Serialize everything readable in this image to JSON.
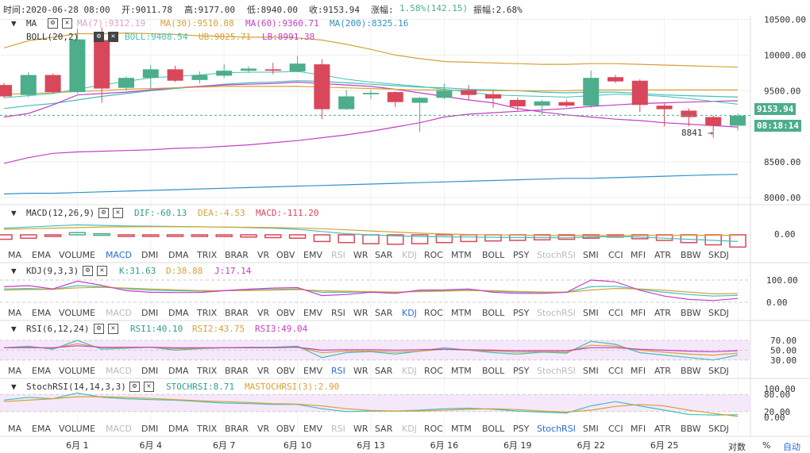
{
  "header": {
    "time": "时间:2020-06-28 08:00",
    "open": "开:9011.78",
    "high": "高:9177.00",
    "low": "低:8940.00",
    "close": "收:9153.94",
    "change_label": "涨幅:",
    "change_value": "1.58%(142.15)",
    "amplitude": "振幅:2.68%"
  },
  "ma_legend": {
    "name": "MA",
    "ma7": "MA(7):9312.19",
    "ma30": "MA(30):9510.08",
    "ma60": "MA(60):9360.71",
    "ma200": "MA(200):8325.16",
    "boll": "BOLL(20,2)",
    "boll_mid": "BOLL:9408.54",
    "boll_ub": "UB:9825.71",
    "boll_lb": "LB:8991.38"
  },
  "macd_legend": {
    "name": "MACD(12,26,9)",
    "dif": "DIF:-60.13",
    "dea": "DEA:-4.53",
    "macd": "MACD:-111.20"
  },
  "kdj_legend": {
    "name": "KDJ(9,3,3)",
    "k": "K:31.63",
    "d": "D:38.88",
    "j": "J:17.14"
  },
  "rsi_legend": {
    "name": "RSI(6,12,24)",
    "r1": "RSI1:40.10",
    "r2": "RSI2:43.75",
    "r3": "RSI3:49.04"
  },
  "stoch_legend": {
    "name": "StochRSI(14,14,3,3)",
    "s": "STOCHRSI:8.71",
    "m": "MASTOCHRSI(3):2.90"
  },
  "indicator_tabs": [
    "MA",
    "EMA",
    "VOLUME",
    "MACD",
    "DMI",
    "DMA",
    "TRIX",
    "BRAR",
    "VR",
    "OBV",
    "EMV",
    "RSI",
    "WR",
    "SAR",
    "KDJ",
    "ROC",
    "MTM",
    "BOLL",
    "PSY",
    "StochRSI",
    "SMI",
    "CCI",
    "MFI",
    "ATR",
    "BBW",
    "SKDJ"
  ],
  "current_price": "9153.94",
  "countdown": "08:18:14",
  "low_marker": "8841 →",
  "high_marker": "10500.00",
  "bottom_controls": {
    "log": "对数",
    "percent": "%",
    "auto": "自动"
  },
  "colors": {
    "up": "#4cae8a",
    "down": "#d9475b",
    "ma7": "#e39ec4",
    "ma30": "#d6a236",
    "ma60": "#c33fc3",
    "ma200": "#2f92c4",
    "boll": "#42c0b8",
    "grid": "#eeeeee"
  },
  "chart_data": {
    "type": "candlestick",
    "main_ylim": [
      7900,
      10550
    ],
    "main_yticks": [
      "8000.00",
      "8500.00",
      "9000.00",
      "9500.00",
      "10000.00",
      "10500.00"
    ],
    "xticks": [
      "6月 1",
      "6月 4",
      "6月 7",
      "6月 10",
      "6月 13",
      "6月 16",
      "6月 19",
      "6月 22",
      "6月 25"
    ],
    "candles": [
      {
        "o": 9580,
        "c": 9420,
        "h": 9610,
        "l": 9400
      },
      {
        "o": 9440,
        "c": 9720,
        "h": 9760,
        "l": 9410
      },
      {
        "o": 9720,
        "c": 9480,
        "h": 9740,
        "l": 9460
      },
      {
        "o": 9480,
        "c": 10220,
        "h": 10370,
        "l": 9460
      },
      {
        "o": 10210,
        "c": 9530,
        "h": 10390,
        "l": 9330
      },
      {
        "o": 9540,
        "c": 9680,
        "h": 9700,
        "l": 9500
      },
      {
        "o": 9680,
        "c": 9800,
        "h": 9860,
        "l": 9500
      },
      {
        "o": 9800,
        "c": 9640,
        "h": 9850,
        "l": 9620
      },
      {
        "o": 9650,
        "c": 9720,
        "h": 9770,
        "l": 9600
      },
      {
        "o": 9710,
        "c": 9780,
        "h": 9870,
        "l": 9680
      },
      {
        "o": 9780,
        "c": 9810,
        "h": 9840,
        "l": 9750
      },
      {
        "o": 9800,
        "c": 9780,
        "h": 9890,
        "l": 9730
      },
      {
        "o": 9770,
        "c": 9880,
        "h": 9990,
        "l": 9760
      },
      {
        "o": 9870,
        "c": 9240,
        "h": 9940,
        "l": 9100
      },
      {
        "o": 9240,
        "c": 9420,
        "h": 9510,
        "l": 9230
      },
      {
        "o": 9450,
        "c": 9470,
        "h": 9510,
        "l": 9380
      },
      {
        "o": 9480,
        "c": 9340,
        "h": 9490,
        "l": 9270
      },
      {
        "o": 9330,
        "c": 9400,
        "h": 9410,
        "l": 8920
      },
      {
        "o": 9400,
        "c": 9500,
        "h": 9600,
        "l": 9380
      },
      {
        "o": 9510,
        "c": 9440,
        "h": 9580,
        "l": 9370
      },
      {
        "o": 9450,
        "c": 9390,
        "h": 9500,
        "l": 9260
      },
      {
        "o": 9370,
        "c": 9280,
        "h": 9400,
        "l": 9220
      },
      {
        "o": 9290,
        "c": 9350,
        "h": 9370,
        "l": 9150
      },
      {
        "o": 9340,
        "c": 9290,
        "h": 9370,
        "l": 9270
      },
      {
        "o": 9290,
        "c": 9680,
        "h": 9780,
        "l": 9260
      },
      {
        "o": 9690,
        "c": 9630,
        "h": 9720,
        "l": 9610
      },
      {
        "o": 9640,
        "c": 9300,
        "h": 9660,
        "l": 9200
      },
      {
        "o": 9290,
        "c": 9240,
        "h": 9320,
        "l": 9000
      },
      {
        "o": 9220,
        "c": 9130,
        "h": 9250,
        "l": 9000
      },
      {
        "o": 9130,
        "c": 9010,
        "h": 9150,
        "l": 8840
      },
      {
        "o": 9010,
        "c": 9150,
        "h": 9180,
        "l": 8940
      }
    ],
    "ma7": [
      9400,
      9430,
      9460,
      9520,
      9580,
      9630,
      9680,
      9700,
      9720,
      9750,
      9760,
      9760,
      9770,
      9720,
      9660,
      9620,
      9590,
      9560,
      9520,
      9480,
      9440,
      9430,
      9420,
      9410,
      9430,
      9450,
      9440,
      9420,
      9390,
      9350,
      9310
    ],
    "ma30": [
      9450,
      9460,
      9470,
      9490,
      9500,
      9520,
      9530,
      9540,
      9550,
      9560,
      9560,
      9560,
      9560,
      9550,
      9540,
      9530,
      9520,
      9510,
      9510,
      9500,
      9500,
      9500,
      9500,
      9500,
      9510,
      9510,
      9510,
      9510,
      9510,
      9510,
      9510
    ],
    "ma60": [
      8480,
      8560,
      8620,
      8640,
      8650,
      8660,
      8670,
      8690,
      8700,
      8720,
      8740,
      8770,
      8800,
      8840,
      8880,
      8930,
      8990,
      9050,
      9130,
      9170,
      9190,
      9210,
      9230,
      9250,
      9280,
      9300,
      9320,
      9330,
      9340,
      9350,
      9360
    ],
    "ma200": [
      8050,
      8060,
      8060,
      8070,
      8080,
      8090,
      8100,
      8110,
      8120,
      8130,
      8140,
      8150,
      8160,
      8170,
      8180,
      8190,
      8200,
      8210,
      8220,
      8230,
      8240,
      8250,
      8260,
      8270,
      8270,
      8280,
      8290,
      8300,
      8310,
      8320,
      8325
    ],
    "boll_mid": [
      9250,
      9290,
      9320,
      9370,
      9420,
      9460,
      9500,
      9530,
      9560,
      9590,
      9610,
      9620,
      9640,
      9630,
      9610,
      9590,
      9570,
      9550,
      9540,
      9520,
      9510,
      9500,
      9480,
      9470,
      9480,
      9480,
      9460,
      9440,
      9430,
      9420,
      9410
    ],
    "boll_ub": [
      10100,
      10200,
      10250,
      10300,
      10300,
      10310,
      10300,
      10290,
      10270,
      10260,
      10250,
      10250,
      10240,
      10210,
      10150,
      10080,
      10000,
      9950,
      9910,
      9900,
      9890,
      9880,
      9870,
      9870,
      9880,
      9880,
      9870,
      9860,
      9850,
      9840,
      9830
    ],
    "boll_lb": [
      9130,
      9180,
      9300,
      9440,
      9460,
      9480,
      9510,
      9540,
      9560,
      9580,
      9590,
      9600,
      9620,
      9600,
      9580,
      9560,
      9520,
      9470,
      9420,
      9370,
      9330,
      9250,
      9200,
      9160,
      9130,
      9100,
      9080,
      9050,
      9030,
      9010,
      8990
    ],
    "macd_hist": [
      -40,
      -30,
      -10,
      20,
      10,
      -5,
      -8,
      -5,
      -10,
      -15,
      -20,
      -25,
      -30,
      -60,
      -70,
      -80,
      -85,
      -80,
      -70,
      -60,
      -55,
      -50,
      -45,
      -40,
      -30,
      -20,
      -35,
      -50,
      -70,
      -90,
      -110
    ],
    "macd_dif": [
      60,
      70,
      80,
      90,
      85,
      80,
      78,
      75,
      72,
      70,
      65,
      60,
      50,
      30,
      10,
      0,
      -10,
      -15,
      -18,
      -20,
      -22,
      -24,
      -25,
      -27,
      -20,
      -15,
      -20,
      -30,
      -40,
      -50,
      -60
    ],
    "macd_dea": [
      50,
      55,
      60,
      65,
      70,
      72,
      73,
      73,
      72,
      70,
      68,
      66,
      62,
      55,
      45,
      35,
      25,
      15,
      8,
      3,
      0,
      -3,
      -6,
      -8,
      -8,
      -8,
      -6,
      -5,
      -4,
      -4,
      -4.5
    ],
    "kdj_k": [
      60,
      62,
      58,
      75,
      70,
      60,
      55,
      52,
      50,
      52,
      55,
      58,
      60,
      45,
      45,
      47,
      44,
      50,
      52,
      55,
      50,
      46,
      44,
      45,
      70,
      72,
      58,
      45,
      35,
      28,
      31
    ],
    "kdj_d": [
      55,
      57,
      58,
      65,
      67,
      64,
      60,
      56,
      53,
      52,
      53,
      55,
      57,
      52,
      50,
      48,
      46,
      48,
      50,
      53,
      52,
      49,
      46,
      45,
      55,
      62,
      60,
      54,
      46,
      38,
      39
    ],
    "kdj_j": [
      70,
      75,
      60,
      95,
      76,
      52,
      45,
      44,
      44,
      52,
      59,
      64,
      66,
      30,
      35,
      45,
      40,
      55,
      56,
      60,
      45,
      40,
      40,
      45,
      100,
      92,
      54,
      28,
      13,
      8,
      17
    ],
    "rsi1": [
      55,
      58,
      52,
      70,
      52,
      54,
      56,
      50,
      53,
      55,
      56,
      56,
      58,
      35,
      45,
      47,
      42,
      48,
      55,
      50,
      45,
      42,
      46,
      44,
      68,
      62,
      45,
      40,
      35,
      30,
      40
    ],
    "rsi2": [
      55,
      56,
      54,
      63,
      55,
      55,
      56,
      53,
      54,
      55,
      55,
      55,
      56,
      45,
      48,
      48,
      46,
      48,
      52,
      50,
      48,
      46,
      47,
      46,
      60,
      58,
      50,
      46,
      42,
      40,
      44
    ],
    "rsi3": [
      55,
      55,
      55,
      59,
      56,
      56,
      56,
      55,
      55,
      55,
      55,
      55,
      56,
      50,
      51,
      51,
      50,
      51,
      52,
      51,
      50,
      49,
      49,
      49,
      55,
      55,
      52,
      50,
      48,
      47,
      49
    ],
    "stoch": [
      60,
      70,
      65,
      85,
      70,
      65,
      62,
      60,
      55,
      50,
      48,
      45,
      45,
      30,
      20,
      22,
      22,
      25,
      30,
      32,
      28,
      22,
      18,
      15,
      40,
      55,
      40,
      25,
      10,
      8,
      9
    ],
    "mastoch": [
      55,
      60,
      65,
      72,
      72,
      70,
      66,
      62,
      58,
      55,
      52,
      48,
      46,
      40,
      30,
      24,
      22,
      22,
      25,
      28,
      30,
      27,
      22,
      18,
      25,
      38,
      45,
      40,
      25,
      14,
      3
    ]
  }
}
